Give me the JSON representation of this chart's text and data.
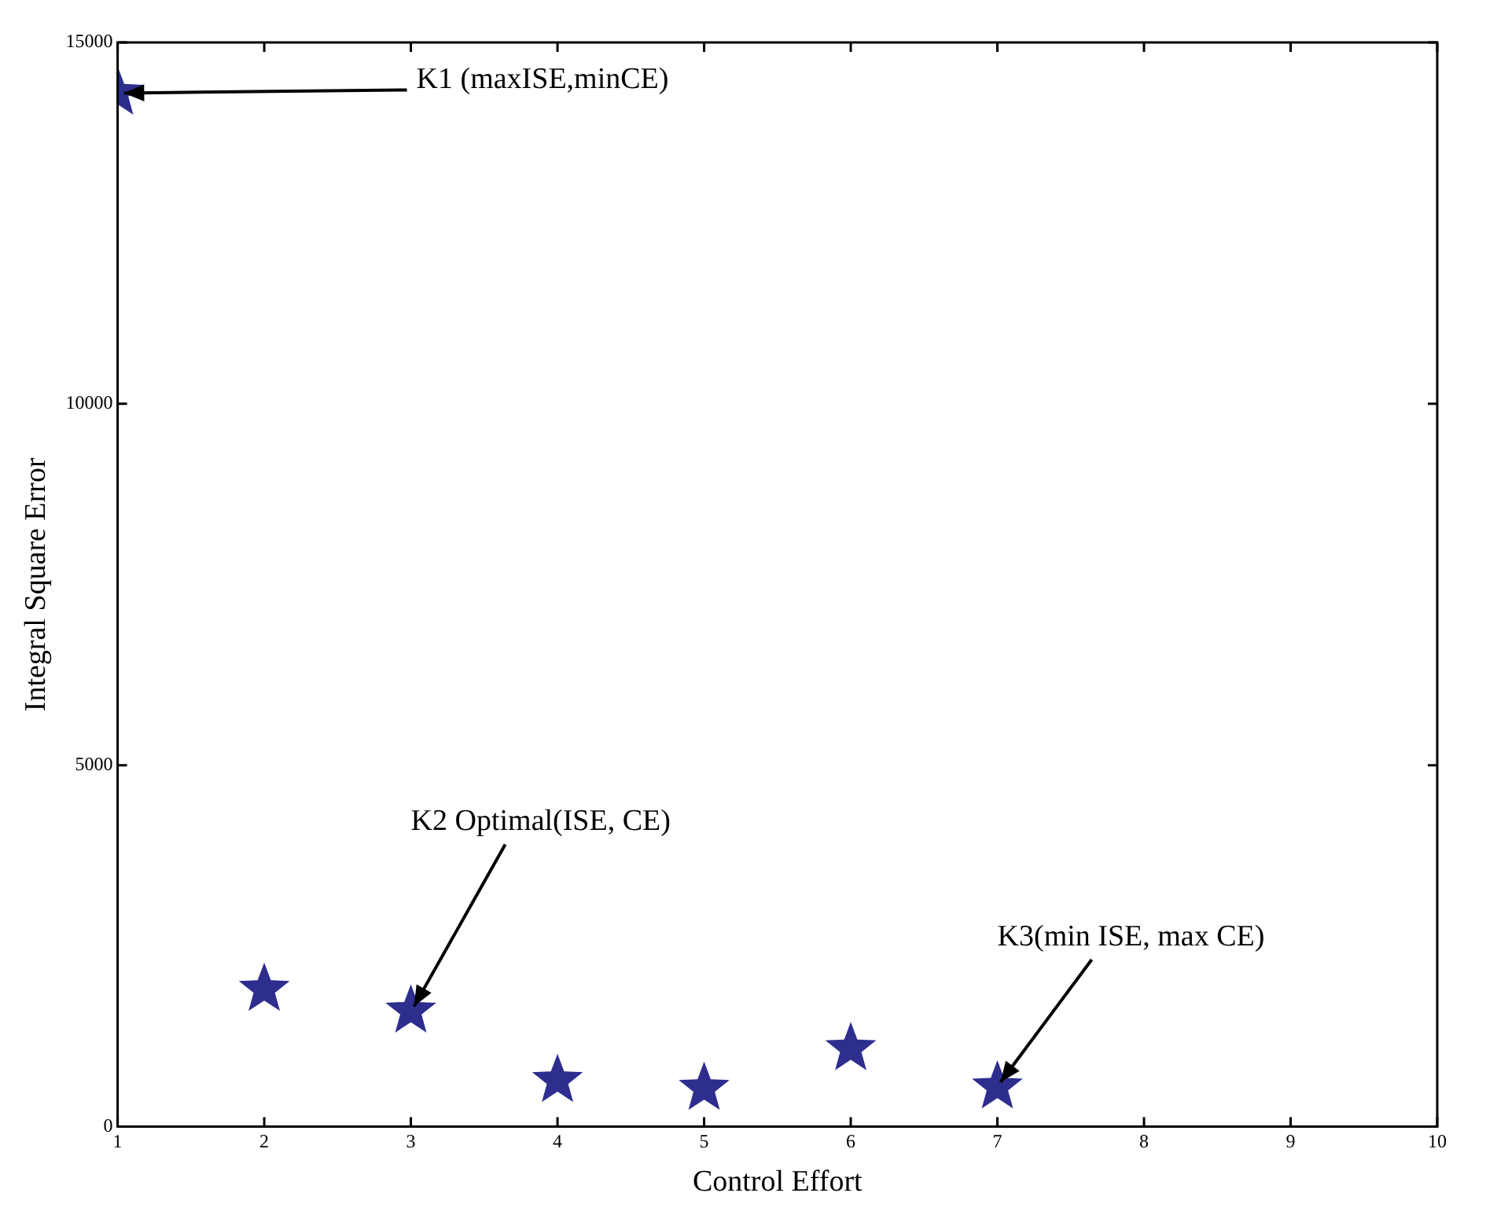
{
  "chart_data": {
    "type": "scatter",
    "xlabel": "Control Effort",
    "ylabel": "Integral Square Error",
    "x": [
      1,
      2,
      3,
      4,
      5,
      6,
      7
    ],
    "series": [
      {
        "color": "#2e2e8f",
        "values": [
          14300,
          1900,
          1600,
          640,
          530,
          1080,
          550
        ]
      }
    ],
    "xlim": [
      1,
      10
    ],
    "xticks": [
      1,
      2,
      3,
      4,
      5,
      6,
      7,
      8,
      9,
      10
    ],
    "ylim": [
      0,
      15000
    ],
    "yticks": [
      0,
      5000,
      10000,
      15000
    ],
    "marker": "star",
    "grid": false,
    "legend": false,
    "annotations": [
      {
        "text": "K1 (maxISE,minCE)",
        "x": 1,
        "y": 14300
      },
      {
        "text": "K2 Optimal(ISE, CE)",
        "x": 3,
        "y": 1600
      },
      {
        "text": "K3(min ISE, max CE)",
        "x": 7,
        "y": 550
      }
    ]
  }
}
